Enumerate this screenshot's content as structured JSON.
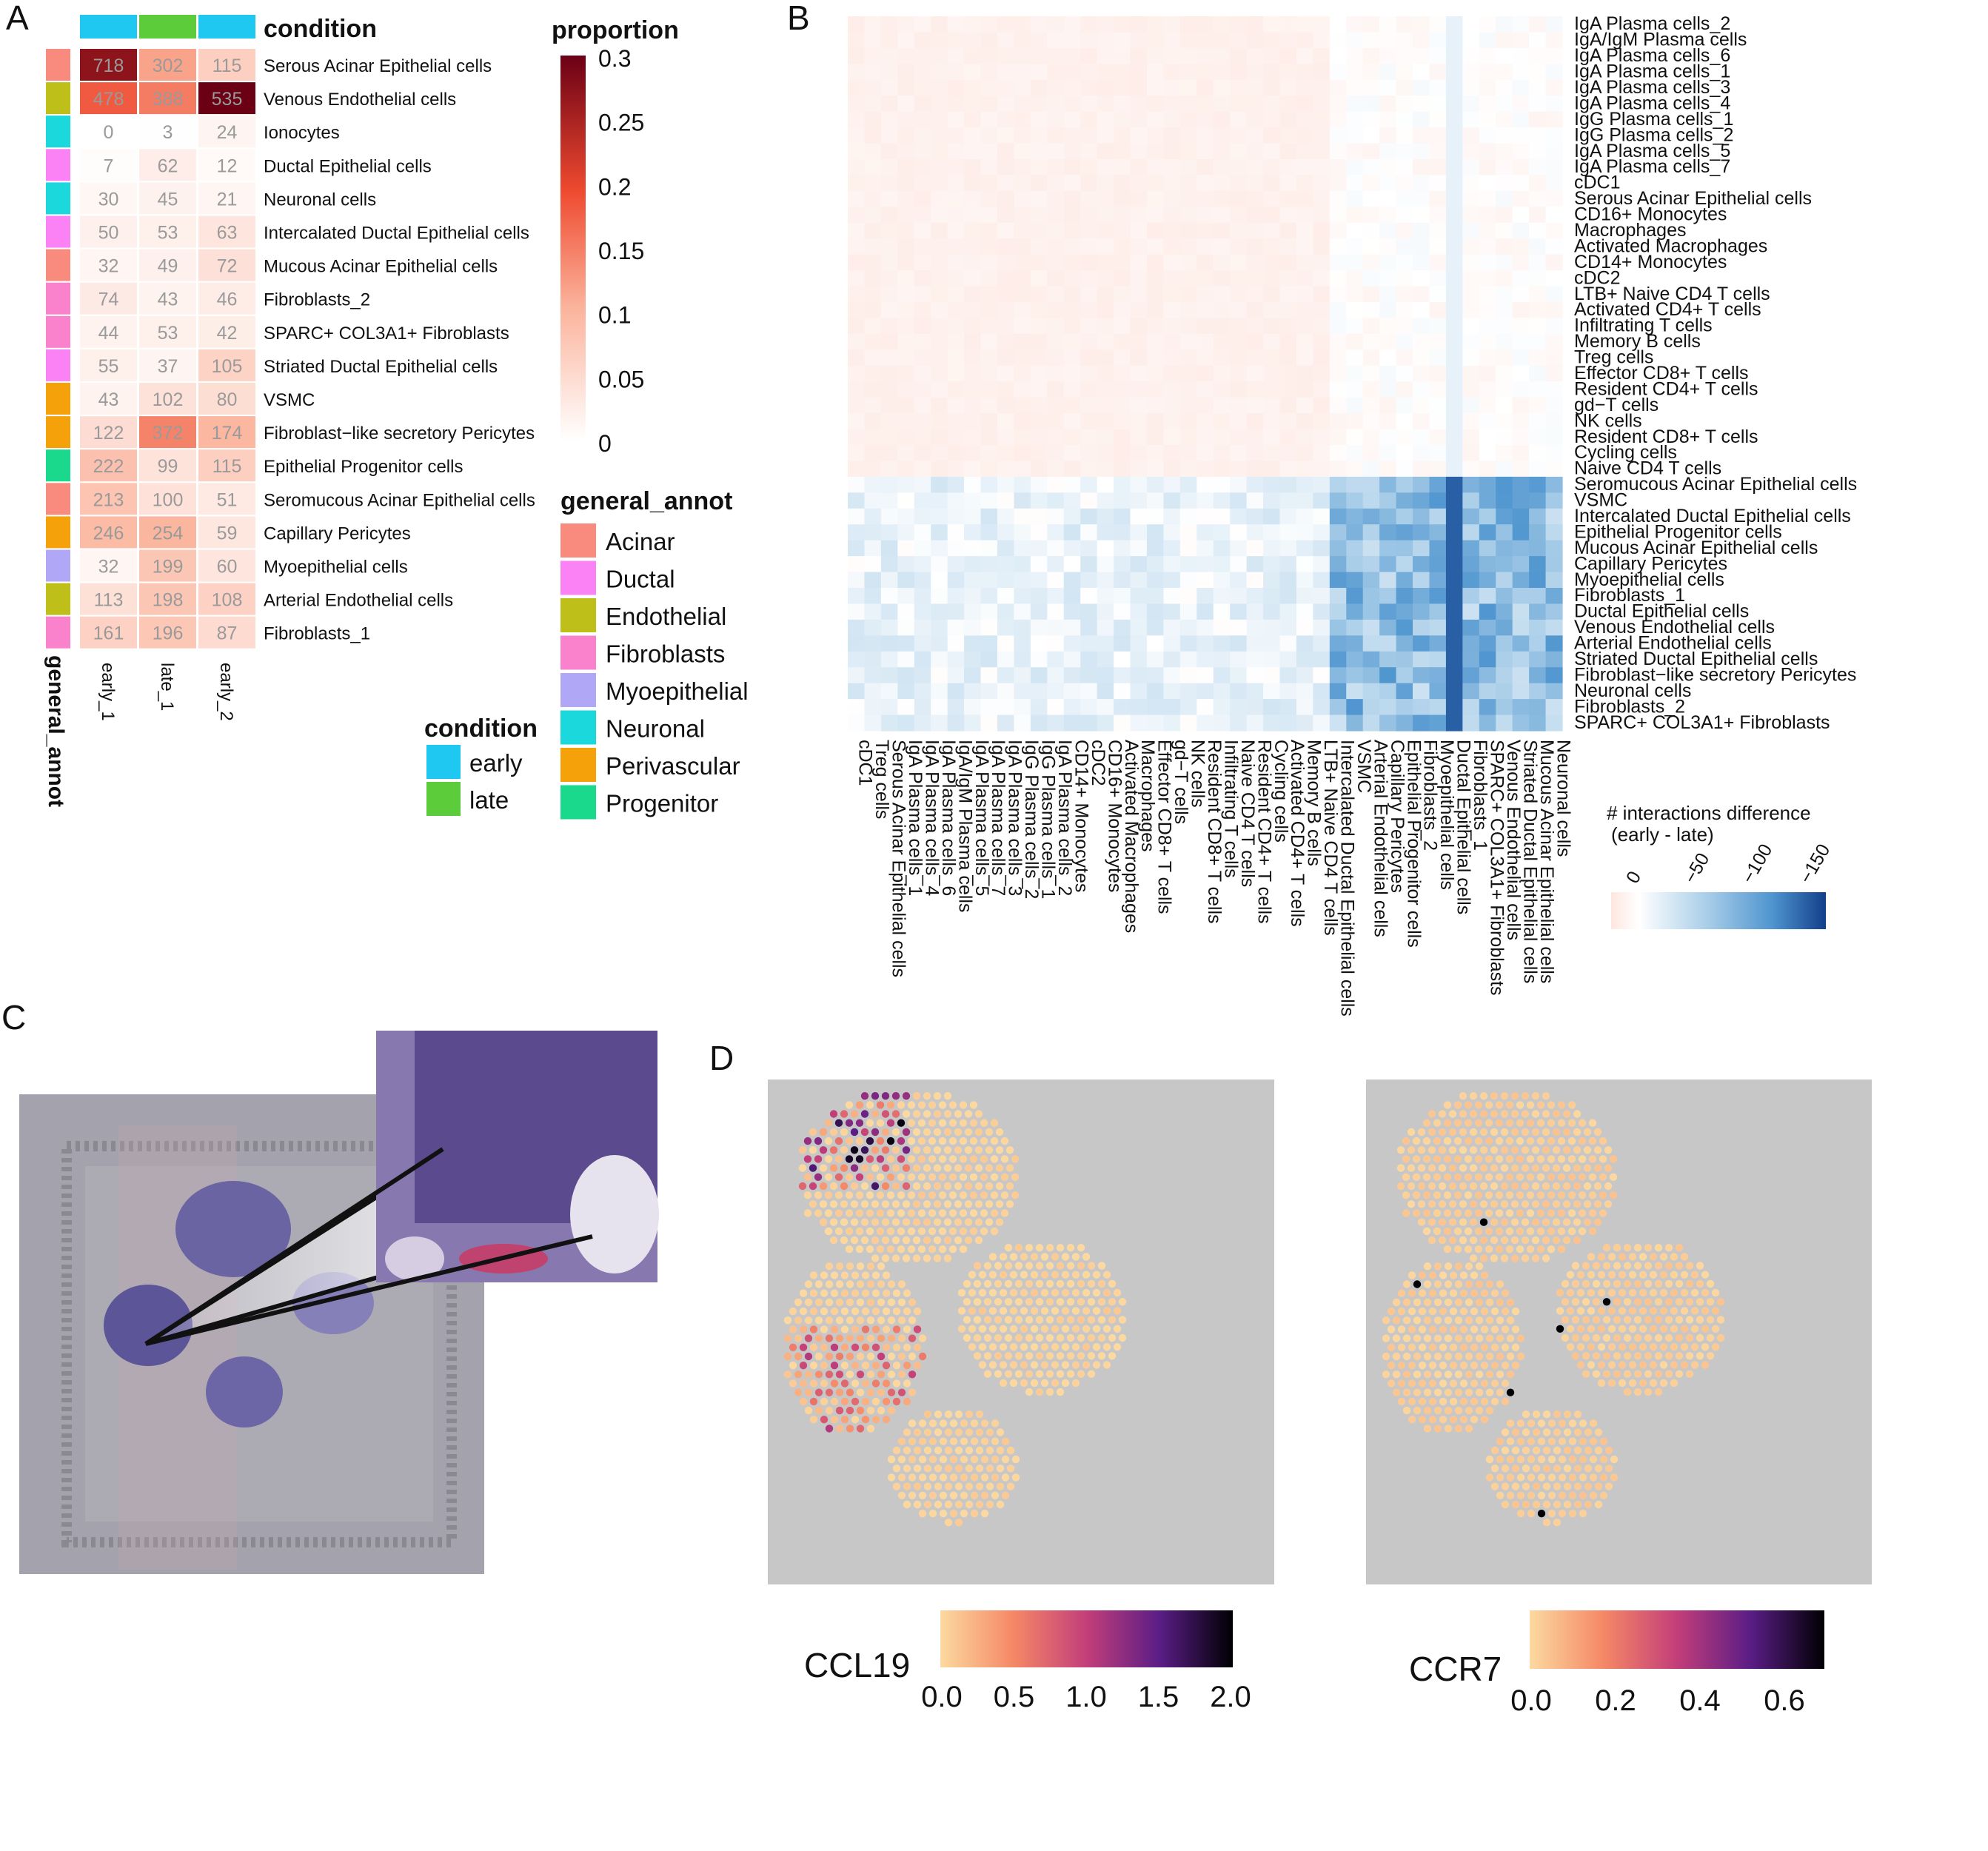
{
  "panels": {
    "A": "A",
    "B": "B",
    "C": "C",
    "D": "D"
  },
  "chart_data": [
    {
      "type": "heatmap",
      "panel": "A",
      "legend_titles": {
        "condition": "condition",
        "proportion": "proportion",
        "general_annot": "general_annot"
      },
      "columns": [
        "early_1",
        "late_1",
        "early_2"
      ],
      "column_condition": [
        "early",
        "late",
        "early"
      ],
      "rows": [
        "Serous Acinar Epithelial cells",
        "Venous Endothelial cells",
        "Ionocytes",
        "Ductal Epithelial cells",
        "Neuronal cells",
        "Intercalated Ductal Epithelial cells",
        "Mucous Acinar Epithelial cells",
        "Fibroblasts_2",
        "SPARC+ COL3A1+ Fibroblasts",
        "Striated Ductal Epithelial cells",
        "VSMC",
        "Fibroblast−like secretory Pericytes",
        "Epithelial Progenitor cells",
        "Seromucous Acinar Epithelial cells",
        "Capillary Pericytes",
        "Myoepithelial cells",
        "Arterial Endothelial cells",
        "Fibroblasts_1"
      ],
      "row_annot": [
        "Acinar",
        "Endothelial",
        "Neuronal",
        "Ductal",
        "Neuronal",
        "Ductal",
        "Acinar",
        "Fibroblasts",
        "Fibroblasts",
        "Ductal",
        "Perivascular",
        "Perivascular",
        "Progenitor",
        "Acinar",
        "Perivascular",
        "Myoepithelial",
        "Endothelial",
        "Fibroblasts"
      ],
      "counts": [
        [
          718,
          302,
          115
        ],
        [
          478,
          388,
          535
        ],
        [
          0,
          3,
          24
        ],
        [
          7,
          62,
          12
        ],
        [
          30,
          45,
          21
        ],
        [
          50,
          53,
          63
        ],
        [
          32,
          49,
          72
        ],
        [
          74,
          43,
          46
        ],
        [
          44,
          53,
          42
        ],
        [
          55,
          37,
          105
        ],
        [
          43,
          102,
          80
        ],
        [
          122,
          372,
          174
        ],
        [
          222,
          99,
          115
        ],
        [
          213,
          100,
          51
        ],
        [
          246,
          254,
          59
        ],
        [
          32,
          199,
          60
        ],
        [
          113,
          198,
          108
        ],
        [
          161,
          196,
          87
        ]
      ],
      "proportion_scale": {
        "ticks": [
          "0.3",
          "0.25",
          "0.2",
          "0.15",
          "0.1",
          "0.05",
          "0"
        ],
        "range": [
          0,
          0.3
        ]
      },
      "condition_legend": [
        {
          "label": "early",
          "color": "#1ec8f0"
        },
        {
          "label": "late",
          "color": "#5ccc3a"
        }
      ],
      "annot_legend": [
        {
          "label": "Acinar",
          "color": "#f98b7e"
        },
        {
          "label": "Ductal",
          "color": "#fa82f4"
        },
        {
          "label": "Endothelial",
          "color": "#bfbf1a"
        },
        {
          "label": "Fibroblasts",
          "color": "#fa82cc"
        },
        {
          "label": "Myoepithelial",
          "color": "#b0a8f6"
        },
        {
          "label": "Neuronal",
          "color": "#1ad8dc"
        },
        {
          "label": "Perivascular",
          "color": "#f5a20a"
        },
        {
          "label": "Progenitor",
          "color": "#1ad88c"
        }
      ]
    },
    {
      "type": "heatmap",
      "panel": "B",
      "row_labels": [
        "IgA Plasma cells_2",
        "IgA/IgM Plasma cells",
        "IgA Plasma cells_6",
        "IgA Plasma cells_1",
        "IgA Plasma cells_3",
        "IgA Plasma cells_4",
        "IgG Plasma cells_1",
        "IgG Plasma cells_2",
        "IgA Plasma cells_5",
        "IgA Plasma cells_7",
        "cDC1",
        "Serous Acinar Epithelial cells",
        "CD16+ Monocytes",
        "Macrophages",
        "Activated Macrophages",
        "CD14+ Monocytes",
        "cDC2",
        "LTB+ Naive CD4 T cells",
        "Activated CD4+ T cells",
        "Infiltrating T cells",
        "Memory B cells",
        "Treg cells",
        "Effector CD8+ T cells",
        "Resident CD4+ T cells",
        "gd−T cells",
        "NK cells",
        "Resident CD8+ T cells",
        "Cycling cells",
        "Naive CD4 T cells",
        "Seromucous Acinar Epithelial cells",
        "VSMC",
        "Intercalated Ductal Epithelial cells",
        "Epithelial Progenitor cells",
        "Mucous Acinar Epithelial cells",
        "Capillary Pericytes",
        "Myoepithelial cells",
        "Fibroblasts_1",
        "Ductal Epithelial cells",
        "Venous Endothelial cells",
        "Arterial Endothelial cells",
        "Striated Ductal Epithelial cells",
        "Fibroblast−like secretory Pericytes",
        "Neuronal cells",
        "Fibroblasts_2",
        "SPARC+ COL3A1+ Fibroblasts"
      ],
      "col_labels": [
        "cDC1",
        "Treg cells",
        "Serous Acinar Epithelial cells",
        "IgA Plasma cells_1",
        "IgA Plasma cells_4",
        "IgA Plasma cells_6",
        "IgA/IgM Plasma cells",
        "IgA Plasma cells_5",
        "IgA Plasma cells_7",
        "IgA Plasma cells_3",
        "IgG Plasma cells_2",
        "IgG Plasma cells_1",
        "IgA Plasma cells_2",
        "CD14+ Monocytes",
        "cDC2",
        "CD16+ Monocytes",
        "Activated Macrophages",
        "Macrophages",
        "Effector CD8+ T cells",
        "gd−T cells",
        "NK cells",
        "Resident CD8+ T cells",
        "Infiltrating T cells",
        "Naive CD4 T cells",
        "Resident CD4+ T cells",
        "Cycling cells",
        "Activated CD4+ T cells",
        "Memory B cells",
        "LTB+ Naive CD4 T cells",
        "Intercalated Ductal Epithelial cells",
        "VSMC",
        "Arterial Endothelial cells",
        "Capillary Pericytes",
        "Epithelial Progenitor cells",
        "Fibroblasts_2",
        "Myoepithelial cells",
        "Ductal Epithelial cells",
        "Fibroblasts_1",
        "SPARC+ COL3A1+ Fibroblasts",
        "Venous Endothelial cells",
        "Striated Ductal Epithelial cells",
        "Mucous Acinar Epithelial cells",
        "Neuronal cells"
      ],
      "legend_title": "# interactions difference\n(early - late)",
      "legend_ticks": [
        "0",
        "−50",
        "−100",
        "−150"
      ],
      "range": [
        -150,
        10
      ]
    },
    {
      "type": "scatter",
      "panel": "D",
      "maps": [
        {
          "gene": "CCL19",
          "ticks": [
            "0.0",
            "0.5",
            "1.0",
            "1.5",
            "2.0"
          ],
          "range": [
            0,
            2.0
          ]
        },
        {
          "gene": "CCR7",
          "ticks": [
            "0.0",
            "0.2",
            "0.4",
            "0.6"
          ],
          "range": [
            0,
            0.7
          ]
        }
      ]
    }
  ]
}
